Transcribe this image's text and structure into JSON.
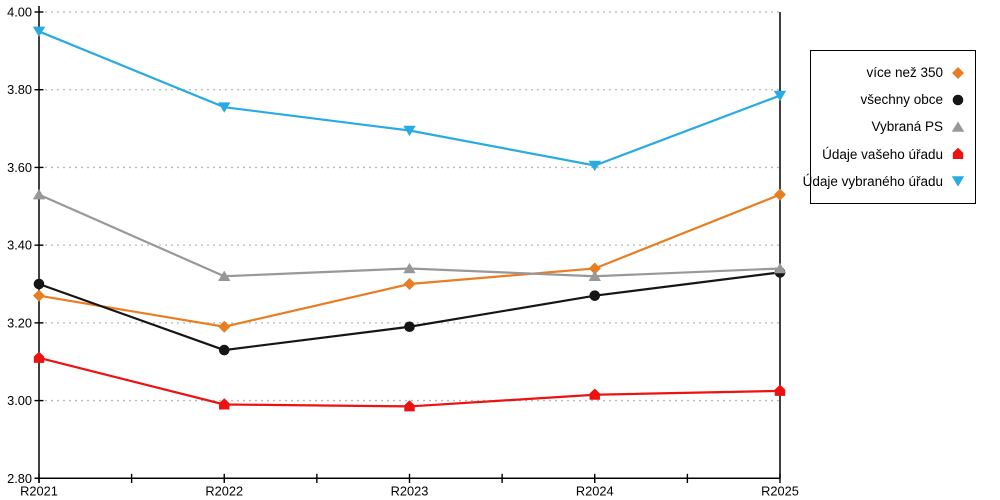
{
  "chart_data": {
    "type": "line",
    "title": "",
    "xlabel": "",
    "ylabel": "",
    "categories": [
      "R2021",
      "R2022",
      "R2023",
      "R2024",
      "R2025"
    ],
    "series": [
      {
        "name": "více než 350",
        "color": "#E87D22",
        "marker": "diamond",
        "values": [
          3.27,
          3.19,
          3.3,
          3.34,
          3.53
        ]
      },
      {
        "name": "všechny obce",
        "color": "#151515",
        "marker": "circle",
        "values": [
          3.3,
          3.13,
          3.19,
          3.27,
          3.33
        ]
      },
      {
        "name": "Vybraná PS",
        "color": "#989898",
        "marker": "triangle-up",
        "values": [
          3.53,
          3.32,
          3.34,
          3.32,
          3.34
        ]
      },
      {
        "name": "Údaje vašeho úřadu",
        "color": "#EE1111",
        "marker": "pentagon-up",
        "values": [
          3.11,
          2.99,
          2.985,
          3.015,
          3.025
        ]
      },
      {
        "name": "Údaje vybraného úřadu",
        "color": "#29ABE2",
        "marker": "triangle-down",
        "values": [
          3.95,
          3.755,
          3.695,
          3.605,
          3.785
        ]
      }
    ],
    "ylim": [
      2.8,
      4.0
    ],
    "ytick_step": 0.2,
    "ytick_labels": [
      "2.80",
      "3.00",
      "3.20",
      "3.40",
      "3.60",
      "3.80",
      "4.00"
    ],
    "grid": "horizontal-dotted",
    "gridline_color": "#b8b8b8",
    "axis_color": "#000000",
    "legend_position": "right"
  }
}
